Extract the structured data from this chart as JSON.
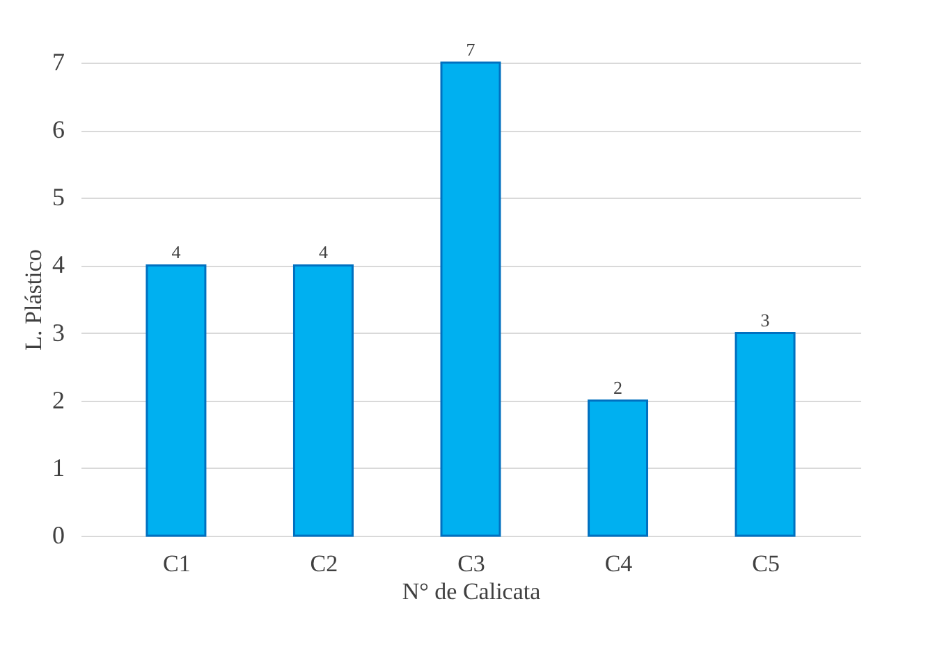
{
  "chart_data": {
    "type": "bar",
    "xlabel": "N° de Calicata",
    "ylabel": "L. Plástico",
    "categories": [
      "C1",
      "C2",
      "C3",
      "C4",
      "C5"
    ],
    "values": [
      4,
      4,
      7,
      2,
      3
    ],
    "color": "#00b0f0",
    "ylim": [
      0,
      7
    ],
    "yticks": [
      0,
      1,
      2,
      3,
      4,
      5,
      6,
      7
    ],
    "grid": "y",
    "data_labels": true
  }
}
